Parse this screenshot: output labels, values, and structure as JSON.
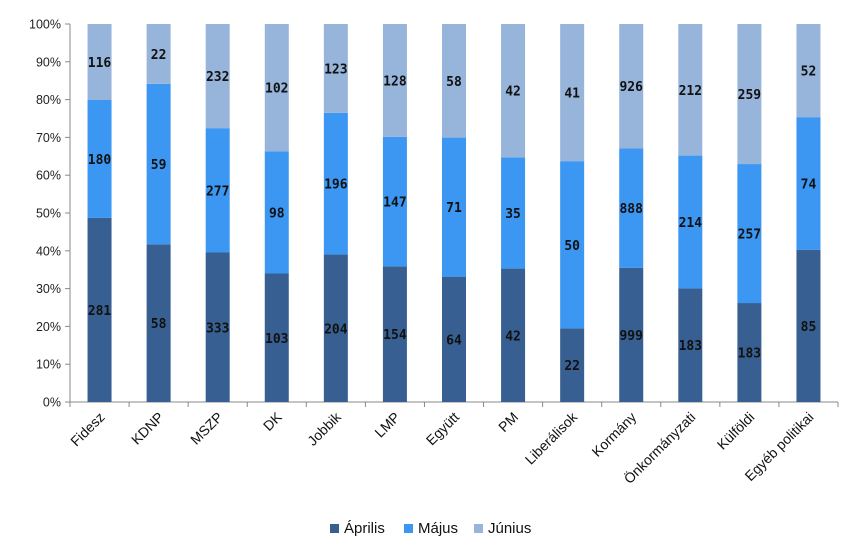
{
  "chart_data": {
    "type": "bar",
    "stacked": "percent",
    "categories": [
      "Fidesz",
      "KDNP",
      "MSZP",
      "DK",
      "Jobbik",
      "LMP",
      "Együtt",
      "PM",
      "Liberálisok",
      "Kormány",
      "Önkormányzati",
      "Külföldi",
      "Egyéb politikai"
    ],
    "series": [
      {
        "name": "Április",
        "color": "#375f92",
        "values": [
          281,
          58,
          333,
          103,
          204,
          154,
          64,
          42,
          22,
          999,
          183,
          183,
          85
        ]
      },
      {
        "name": "Május",
        "color": "#3b97f2",
        "values": [
          180,
          59,
          277,
          98,
          196,
          147,
          71,
          35,
          50,
          888,
          214,
          257,
          74
        ]
      },
      {
        "name": "Június",
        "color": "#97b4da",
        "values": [
          116,
          22,
          232,
          102,
          123,
          128,
          58,
          42,
          41,
          926,
          212,
          259,
          52
        ]
      }
    ],
    "y_tick_labels": [
      "0%",
      "10%",
      "20%",
      "30%",
      "40%",
      "50%",
      "60%",
      "70%",
      "80%",
      "90%",
      "100%"
    ],
    "ylim": [
      0,
      100
    ],
    "grid": false,
    "legend_position": "bottom"
  }
}
